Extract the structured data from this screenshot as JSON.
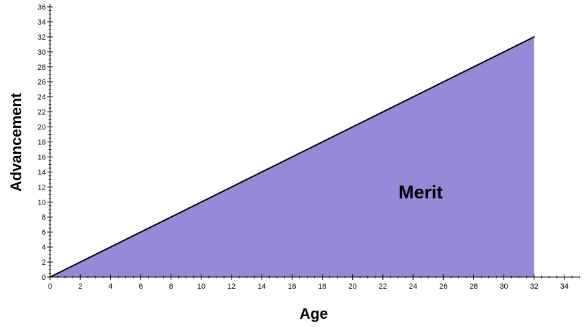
{
  "chart_data": {
    "type": "area",
    "title": "",
    "xlabel": "Age",
    "ylabel": "Advancement",
    "xlim": [
      0,
      35
    ],
    "ylim": [
      0,
      36
    ],
    "x_ticks": [
      0,
      2,
      4,
      6,
      8,
      10,
      12,
      14,
      16,
      18,
      20,
      22,
      24,
      26,
      28,
      30,
      32,
      34
    ],
    "y_ticks": [
      0,
      2,
      4,
      6,
      8,
      10,
      12,
      14,
      16,
      18,
      20,
      22,
      24,
      26,
      28,
      30,
      32,
      34,
      36
    ],
    "series": [
      {
        "x": [
          0,
          32
        ],
        "y": [
          0,
          32
        ],
        "fill_color": "#9589d8",
        "line_color": "#000000"
      }
    ],
    "annotations": [
      {
        "text": "Merit",
        "x": 24.5,
        "y": 10.5
      }
    ],
    "grid": false,
    "minor_ticks": true
  }
}
